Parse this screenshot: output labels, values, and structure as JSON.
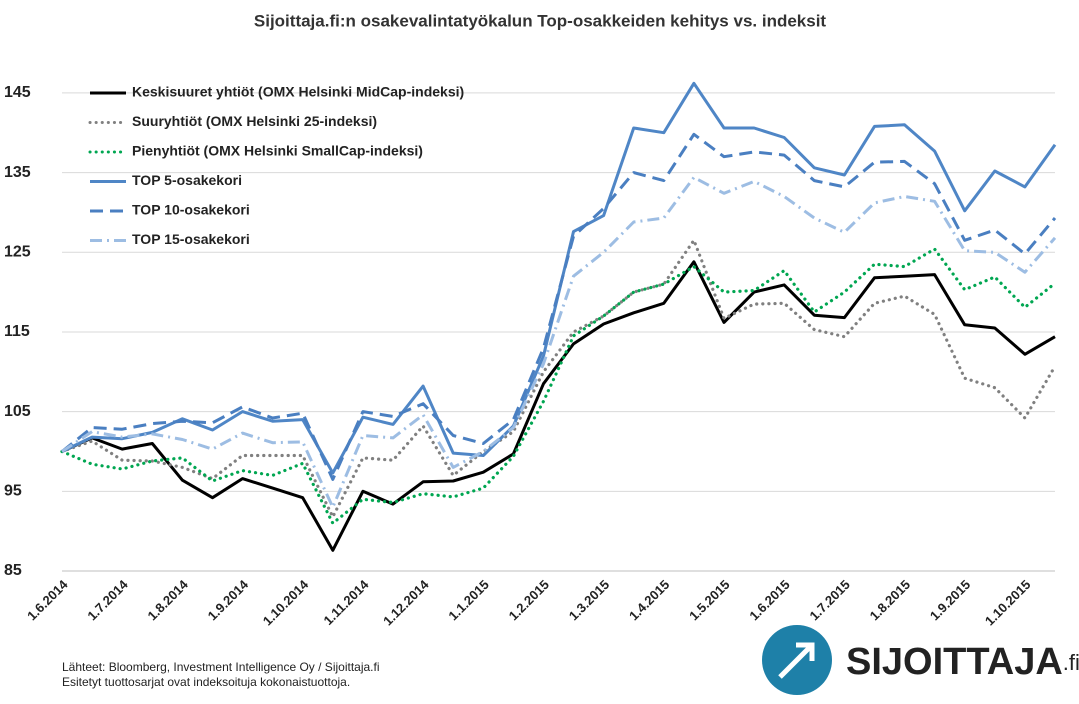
{
  "chart_data": {
    "type": "line",
    "title": "Sijoittaja.fi:n osakevalintatyökalun Top-osakkeiden kehitys vs. indeksit",
    "categories": [
      "1.6.2014",
      null,
      "1.7.2014",
      null,
      "1.8.2014",
      null,
      "1.9.2014",
      null,
      "1.10.2014",
      null,
      "1.11.2014",
      null,
      "1.12.2014",
      null,
      "1.1.2015",
      null,
      "1.2.2015",
      null,
      "1.3.2015",
      null,
      "1.4.2015",
      null,
      "1.5.2015",
      null,
      "1.6.2015",
      null,
      "1.7.2015",
      null,
      "1.8.2015",
      null,
      "1.9.2015",
      null,
      "1.10.2015",
      null
    ],
    "series": [
      {
        "name": "Keskisuuret yhtiöt (OMX Helsinki MidCap-indeksi)",
        "color": "#000000",
        "style": "solid",
        "values": [
          100,
          101.7,
          100.3,
          101,
          96.4,
          94.2,
          96.6,
          95.4,
          94.2,
          87.6,
          95,
          93.4,
          96.2,
          96.3,
          97.4,
          99.7,
          108.5,
          113.5,
          116,
          117.4,
          118.6,
          123.8,
          116.2,
          120,
          120.9,
          117.1,
          116.8,
          121.8,
          122,
          122.2,
          115.9,
          115.5,
          112.2,
          114.4
        ]
      },
      {
        "name": "Suuryhtiöt (OMX Helsinki 25-indeksi)",
        "color": "#808080",
        "style": "dotted",
        "values": [
          100,
          101.3,
          98.9,
          98.8,
          98,
          96.6,
          99.5,
          99.5,
          99.5,
          91.8,
          99.2,
          98.9,
          103.2,
          97,
          100,
          102.5,
          110,
          115,
          117,
          120,
          121,
          126.5,
          116.7,
          118.5,
          118.6,
          115.3,
          114.4,
          118.6,
          119.5,
          117.2,
          109.2,
          108,
          104.2,
          110.7
        ]
      },
      {
        "name": "Pienyhtiöt (OMX Helsinki SmallCap-indeksi)",
        "color": "#00a651",
        "style": "dotted",
        "values": [
          100,
          98.4,
          97.8,
          98.8,
          99.2,
          96.3,
          97.6,
          97,
          98.5,
          91,
          94,
          93.6,
          94.7,
          94.3,
          95.4,
          99.4,
          106.3,
          114.5,
          117,
          120,
          121,
          123.2,
          120,
          120.2,
          122.7,
          117.5,
          120,
          123.5,
          123.2,
          125.4,
          120.3,
          121.9,
          118.1,
          121.1
        ]
      },
      {
        "name": "TOP 5-osakekori",
        "color": "#4f86c6",
        "style": "solid",
        "values": [
          100,
          101.8,
          101.6,
          102.4,
          104.1,
          102.7,
          105,
          103.8,
          104,
          97.3,
          104.3,
          103.4,
          108.2,
          99.8,
          99.5,
          103.2,
          112,
          127.6,
          129.6,
          140.6,
          140,
          146.2,
          140.6,
          140.6,
          139.4,
          135.6,
          134.7,
          140.8,
          141,
          137.7,
          130.2,
          135.2,
          133.2,
          138.5
        ]
      },
      {
        "name": "TOP 10-osakekori",
        "color": "#4a7fc1",
        "style": "dashed",
        "values": [
          100,
          103,
          102.8,
          103.5,
          103.8,
          103.6,
          105.6,
          104.2,
          104.8,
          96.5,
          105,
          104.4,
          106,
          102,
          101,
          104,
          113,
          127,
          130.5,
          135,
          134,
          139.8,
          137,
          137.6,
          137.2,
          134,
          133.2,
          136.3,
          136.4,
          133.6,
          126.5,
          127.8,
          124.8,
          129.3
        ]
      },
      {
        "name": "TOP 15-osakekori",
        "color": "#9dbde3",
        "style": "dashdot",
        "values": [
          100,
          102.5,
          101.8,
          102.2,
          101.5,
          100.3,
          102.3,
          101.1,
          101.2,
          93,
          102,
          101.7,
          104.6,
          98,
          100,
          103,
          111,
          122,
          125,
          128.8,
          129.3,
          134.4,
          132.4,
          133.9,
          132,
          129.3,
          127.5,
          131.2,
          132,
          131.4,
          125.2,
          125,
          122.5,
          126.8
        ]
      }
    ],
    "ylim": [
      85,
      148
    ],
    "yticks": [
      85,
      95,
      105,
      115,
      125,
      135,
      145
    ],
    "grid": true,
    "legend": "upper left",
    "notes": [
      "Lähteet: Bloomberg, Investment Intelligence Oy / Sijoittaja.fi",
      "Esitetyt tuottosarjat ovat indeksoituja kokonaistuottoja."
    ]
  },
  "logo": {
    "name": "SIJOITTAJA",
    "suffix": ".fi"
  }
}
